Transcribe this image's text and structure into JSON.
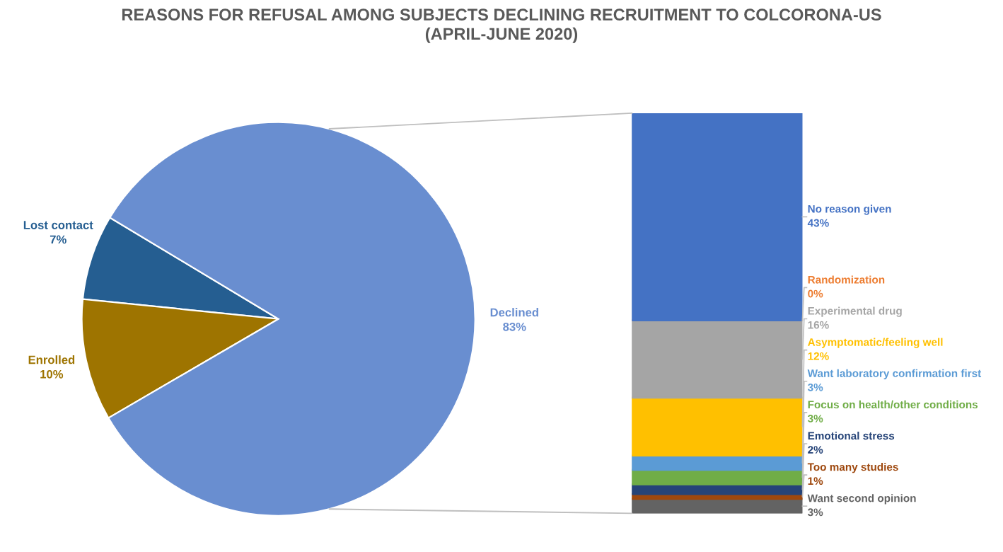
{
  "chart_data": [
    {
      "type": "pie",
      "title": "REASONS FOR REFUSAL AMONG SUBJECTS DECLINING RECRUITMENT TO COLCORONA-US\n(APRIL-JUNE 2020)",
      "categories": [
        "Lost contact",
        "Enrolled",
        "Declined"
      ],
      "values": [
        7,
        10,
        83
      ],
      "colors": [
        "#255e91",
        "#9e7400",
        "#698ed0"
      ],
      "value_labels": [
        "7%",
        "10%",
        "83%"
      ]
    },
    {
      "type": "bar",
      "stacked": true,
      "categories": [
        null
      ],
      "series": [
        {
          "name": "Want second opinion",
          "color": "#636363",
          "values": [
            3
          ],
          "value_labels": [
            "3%"
          ]
        },
        {
          "name": "Too many studies",
          "color": "#9e480e",
          "values": [
            1
          ],
          "value_labels": [
            "1%"
          ]
        },
        {
          "name": "Emotional stress",
          "color": "#264478",
          "values": [
            2
          ],
          "value_labels": [
            "2%"
          ]
        },
        {
          "name": "Focus on health/other conditions",
          "color": "#70ad47",
          "values": [
            3
          ],
          "value_labels": [
            "3%"
          ]
        },
        {
          "name": "Want laboratory confirmation first",
          "color": "#5b9bd5",
          "values": [
            3
          ],
          "value_labels": [
            "3%"
          ]
        },
        {
          "name": "Asymptomatic/feeling well",
          "color": "#ffc000",
          "values": [
            12
          ],
          "value_labels": [
            "12%"
          ]
        },
        {
          "name": "Experimental drug",
          "color": "#a5a5a5",
          "values": [
            16
          ],
          "value_labels": [
            "16%"
          ]
        },
        {
          "name": "Randomization",
          "color": "#ed7d31",
          "values": [
            0
          ],
          "value_labels": [
            "0%"
          ]
        },
        {
          "name": "No reason given",
          "color": "#4472c4",
          "values": [
            43
          ],
          "value_labels": [
            "43%"
          ]
        }
      ]
    }
  ]
}
